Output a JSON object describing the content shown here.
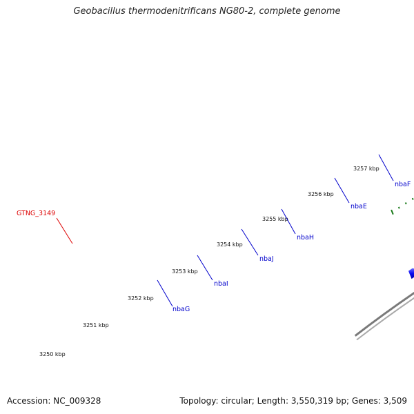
{
  "title": "Geobacillus thermodenitrificans NG80-2, complete genome",
  "footer": {
    "accession": "Accession: NC_009328",
    "summary": "Topology: circular; Length: 3,550,319 bp; Genes: 3,509"
  },
  "colors": {
    "background": "#ffffff",
    "backbone": "#8c8c8c",
    "ticks": "#1a7a1a",
    "label_blue": "#0000cc",
    "label_red": "#dd0000",
    "gene_blue": "#0a0af0",
    "gene_navy": "#0a0a78",
    "gene_steel": "#4f86b5",
    "gene_cyan": "#22e6e6",
    "gene_red": "#ee1010",
    "gene_gray": "#b4b4b4",
    "gene_darkgray": "#5a5a5a"
  },
  "bp_ticks": [
    "3250 kbp",
    "3251 kbp",
    "3252 kbp",
    "3253 kbp",
    "3254 kbp",
    "3255 kbp",
    "3256 kbp",
    "3257 kbp"
  ],
  "gene_labels": [
    {
      "text": "GTNG_3149",
      "color": "red"
    },
    {
      "text": "nbaG",
      "color": "blue"
    },
    {
      "text": "nbaI",
      "color": "blue"
    },
    {
      "text": "nbaJ",
      "color": "blue"
    },
    {
      "text": "nbaH",
      "color": "blue"
    },
    {
      "text": "nbaE",
      "color": "blue"
    },
    {
      "text": "nbaF",
      "color": "blue"
    }
  ]
}
